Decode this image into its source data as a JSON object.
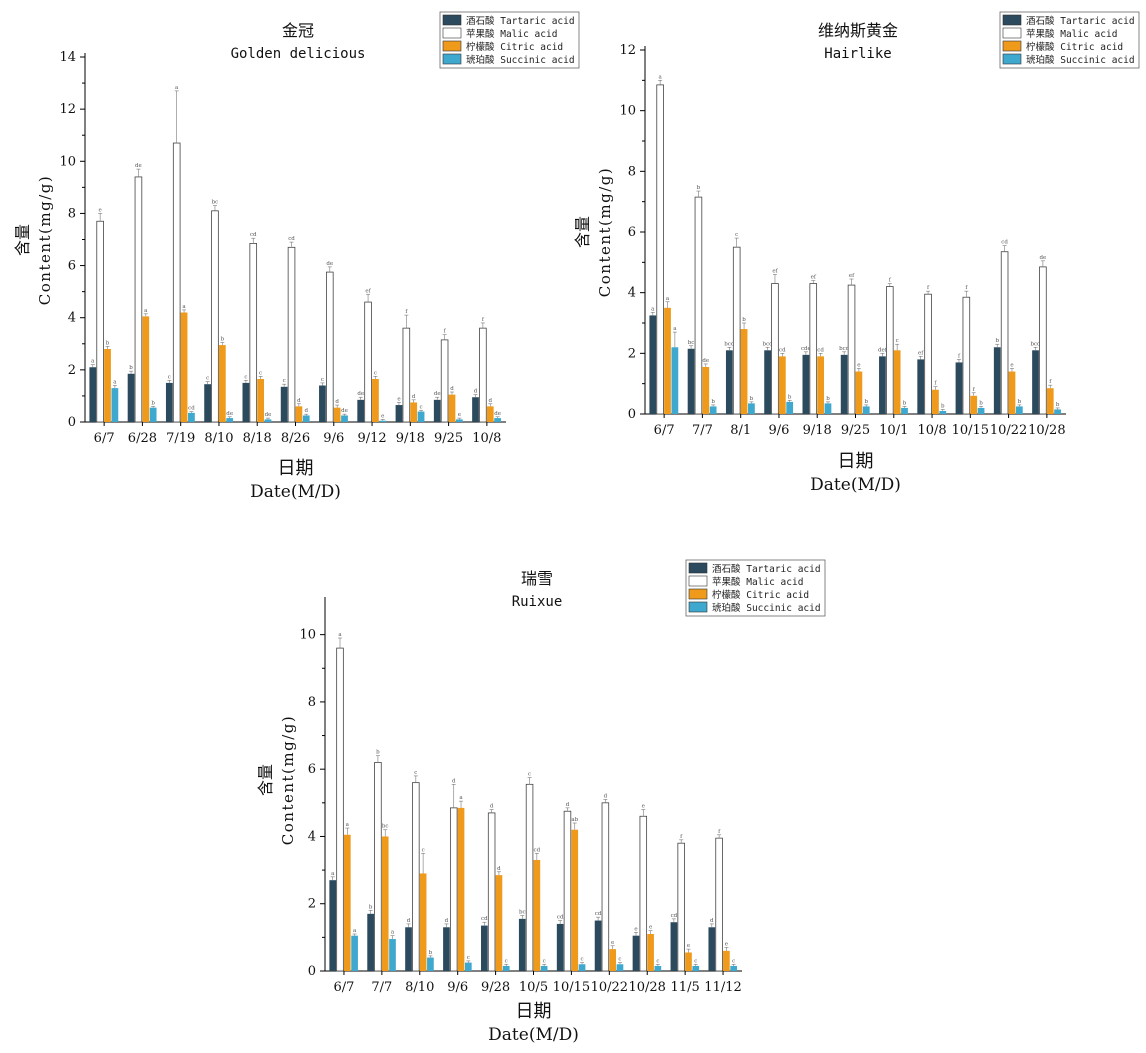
{
  "colors": {
    "tartaric": "#2b4a5e",
    "malic": "#ffffff",
    "citric": "#ef9a1a",
    "succinic": "#3fa8cf"
  },
  "chart_data": [
    {
      "type": "bar",
      "title": "金冠",
      "subtitle": "Golden delicious",
      "ylabel_cn": "含量",
      "ylabel_en": "Content(mg/g)",
      "xlabel_cn": "日期",
      "xlabel_en": "Date(M/D)",
      "ylim": [
        0,
        14
      ],
      "yticks": [
        0,
        2,
        4,
        6,
        8,
        10,
        12,
        14
      ],
      "legend_position": "top-right",
      "categories": [
        "6/7",
        "6/28",
        "7/19",
        "8/10",
        "8/18",
        "8/26",
        "9/6",
        "9/12",
        "9/18",
        "9/25",
        "10/8"
      ],
      "series": [
        {
          "name": "酒石酸 Tartaric acid",
          "values": [
            2.1,
            1.85,
            1.5,
            1.45,
            1.5,
            1.35,
            1.4,
            0.85,
            0.65,
            0.85,
            0.95
          ],
          "errors": [
            0.1,
            0.1,
            0.1,
            0.1,
            0.1,
            0.1,
            0.1,
            0.1,
            0.1,
            0.1,
            0.1
          ]
        },
        {
          "name": "苹果酸 Malic acid",
          "values": [
            7.7,
            9.4,
            10.7,
            8.1,
            6.85,
            6.7,
            5.75,
            4.6,
            3.6,
            3.15,
            3.6
          ],
          "errors": [
            0.3,
            0.3,
            2.0,
            0.2,
            0.2,
            0.2,
            0.2,
            0.3,
            0.5,
            0.2,
            0.2
          ]
        },
        {
          "name": "柠檬酸 Citric acid",
          "values": [
            2.8,
            4.05,
            4.2,
            2.95,
            1.65,
            0.6,
            0.55,
            1.65,
            0.75,
            1.05,
            0.6
          ],
          "errors": [
            0.1,
            0.1,
            0.1,
            0.1,
            0.1,
            0.1,
            0.1,
            0.1,
            0.1,
            0.1,
            0.1
          ]
        },
        {
          "name": "琥珀酸 Succinic acid",
          "values": [
            1.3,
            0.55,
            0.35,
            0.15,
            0.1,
            0.25,
            0.25,
            0.05,
            0.4,
            0.1,
            0.15
          ],
          "errors": [
            0.1,
            0.05,
            0.05,
            0.05,
            0.05,
            0.05,
            0.05,
            0.05,
            0.05,
            0.05,
            0.05
          ]
        }
      ],
      "letters": [
        [
          "a",
          "b",
          "c",
          "c",
          "c",
          "c",
          "c",
          "de",
          "e",
          "de",
          "d"
        ],
        [
          "e",
          "de",
          "a",
          "bc",
          "cd",
          "cd",
          "de",
          "ef",
          "f",
          "f",
          "f"
        ],
        [
          "b",
          "a",
          "a",
          "b",
          "c",
          "d",
          "d",
          "c",
          "d",
          "d",
          "d"
        ],
        [
          "a",
          "b",
          "cd",
          "de",
          "de",
          "d",
          "de",
          "e",
          "c",
          "e",
          "de"
        ]
      ]
    },
    {
      "type": "bar",
      "title": "维纳斯黄金",
      "subtitle": "Hairlike",
      "ylabel_cn": "含量",
      "ylabel_en": "Content(mg/g)",
      "xlabel_cn": "日期",
      "xlabel_en": "Date(M/D)",
      "ylim": [
        0,
        12
      ],
      "yticks": [
        0,
        2,
        4,
        6,
        8,
        10,
        12
      ],
      "legend_position": "top-right",
      "categories": [
        "6/7",
        "7/7",
        "8/1",
        "9/6",
        "9/18",
        "9/25",
        "10/1",
        "10/8",
        "10/15",
        "10/22",
        "10/28"
      ],
      "series": [
        {
          "name": "酒石酸 Tartaric acid",
          "values": [
            3.25,
            2.15,
            2.1,
            2.1,
            1.95,
            1.95,
            1.9,
            1.8,
            1.7,
            2.2,
            2.1
          ],
          "errors": [
            0.1,
            0.1,
            0.1,
            0.1,
            0.1,
            0.1,
            0.1,
            0.1,
            0.1,
            0.1,
            0.1
          ]
        },
        {
          "name": "苹果酸 Malic acid",
          "values": [
            10.85,
            7.15,
            5.5,
            4.3,
            4.3,
            4.25,
            4.2,
            3.95,
            3.85,
            5.35,
            4.85
          ],
          "errors": [
            0.15,
            0.2,
            0.3,
            0.3,
            0.1,
            0.2,
            0.1,
            0.1,
            0.2,
            0.2,
            0.2
          ]
        },
        {
          "name": "柠檬酸 Citric acid",
          "values": [
            3.5,
            1.55,
            2.8,
            1.9,
            1.9,
            1.4,
            2.1,
            0.8,
            0.6,
            1.4,
            0.85
          ],
          "errors": [
            0.2,
            0.1,
            0.2,
            0.1,
            0.1,
            0.1,
            0.2,
            0.1,
            0.1,
            0.1,
            0.1
          ]
        },
        {
          "name": "琥珀酸 Succinic acid",
          "values": [
            2.2,
            0.25,
            0.35,
            0.4,
            0.35,
            0.25,
            0.2,
            0.1,
            0.2,
            0.25,
            0.15
          ],
          "errors": [
            0.5,
            0.05,
            0.05,
            0.05,
            0.05,
            0.05,
            0.05,
            0.05,
            0.05,
            0.05,
            0.05
          ]
        }
      ],
      "letters": [
        [
          "a",
          "bc",
          "bcd",
          "bcd",
          "cde",
          "bcd",
          "def",
          "ef",
          "f",
          "b",
          "bcd"
        ],
        [
          "a",
          "b",
          "c",
          "ef",
          "ef",
          "ef",
          "f",
          "f",
          "f",
          "cd",
          "de"
        ],
        [
          "a",
          "de",
          "b",
          "cd",
          "cd",
          "e",
          "c",
          "f",
          "f",
          "e",
          "f"
        ],
        [
          "a",
          "b",
          "b",
          "b",
          "b",
          "b",
          "b",
          "b",
          "b",
          "b",
          "b"
        ]
      ]
    },
    {
      "type": "bar",
      "title": "瑞雪",
      "subtitle": "Ruixue",
      "ylabel_cn": "含量",
      "ylabel_en": "Content(mg/g)",
      "xlabel_cn": "日期",
      "xlabel_en": "Date(M/D)",
      "ylim": [
        0,
        11
      ],
      "yticks": [
        0,
        2,
        4,
        6,
        8,
        10
      ],
      "legend_position": "top-right",
      "categories": [
        "6/7",
        "7/7",
        "8/10",
        "9/6",
        "9/28",
        "10/5",
        "10/15",
        "10/22",
        "10/28",
        "11/5",
        "11/12"
      ],
      "series": [
        {
          "name": "酒石酸 Tartaric acid",
          "values": [
            2.7,
            1.7,
            1.3,
            1.3,
            1.35,
            1.55,
            1.4,
            1.5,
            1.05,
            1.45,
            1.3
          ],
          "errors": [
            0.1,
            0.1,
            0.1,
            0.1,
            0.1,
            0.1,
            0.1,
            0.1,
            0.1,
            0.1,
            0.1
          ]
        },
        {
          "name": "苹果酸 Malic acid",
          "values": [
            9.6,
            6.2,
            5.6,
            4.85,
            4.7,
            5.55,
            4.75,
            5.0,
            4.6,
            3.8,
            3.95
          ],
          "errors": [
            0.3,
            0.2,
            0.2,
            0.7,
            0.1,
            0.2,
            0.1,
            0.1,
            0.2,
            0.1,
            0.1
          ]
        },
        {
          "name": "柠檬酸 Citric acid",
          "values": [
            4.05,
            4.0,
            2.9,
            4.85,
            2.85,
            3.3,
            4.2,
            0.65,
            1.1,
            0.55,
            0.6
          ],
          "errors": [
            0.2,
            0.2,
            0.6,
            0.2,
            0.1,
            0.2,
            0.2,
            0.1,
            0.1,
            0.1,
            0.1
          ]
        },
        {
          "name": "琥珀酸 Succinic acid",
          "values": [
            1.05,
            0.95,
            0.4,
            0.25,
            0.15,
            0.15,
            0.2,
            0.2,
            0.15,
            0.15,
            0.15
          ],
          "errors": [
            0.05,
            0.1,
            0.05,
            0.05,
            0.05,
            0.05,
            0.05,
            0.05,
            0.05,
            0.05,
            0.05
          ]
        }
      ],
      "letters": [
        [
          "a",
          "b",
          "d",
          "d",
          "cd",
          "bc",
          "cd",
          "cd",
          "e",
          "cd",
          "d"
        ],
        [
          "a",
          "b",
          "c",
          "d",
          "d",
          "c",
          "d",
          "d",
          "e",
          "f",
          "f"
        ],
        [
          "a",
          "bc",
          "c",
          "a",
          "d",
          "cd",
          "ab",
          "e",
          "e",
          "e",
          "e"
        ],
        [
          "a",
          "a",
          "b",
          "c",
          "c",
          "c",
          "c",
          "c",
          "c",
          "c",
          "c"
        ]
      ]
    }
  ]
}
